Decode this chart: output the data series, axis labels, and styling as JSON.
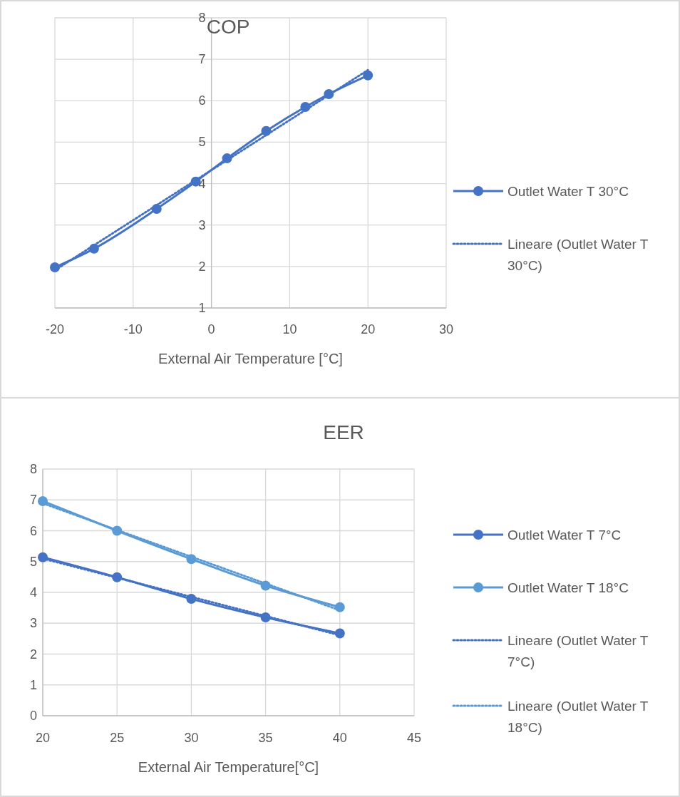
{
  "chart_data": [
    {
      "type": "line",
      "title": "COP",
      "xlabel": "External Air Temperature [°C]",
      "xlim": [
        -20,
        30
      ],
      "xticks": [
        -20,
        -10,
        0,
        10,
        20,
        30
      ],
      "ylim": [
        1,
        8
      ],
      "yticks": [
        1,
        2,
        3,
        4,
        5,
        6,
        7,
        8
      ],
      "grid": true,
      "legend": "right",
      "series": [
        {
          "name": "Outlet Water T 30°C",
          "color": "#4472c4",
          "marker": "circle",
          "line_style": "solid",
          "x": [
            -20,
            -15,
            -7,
            -2,
            2,
            7,
            12,
            15,
            20
          ],
          "values": [
            1.98,
            2.43,
            3.39,
            4.05,
            4.61,
            5.27,
            5.85,
            6.16,
            6.61
          ]
        },
        {
          "name": "Lineare (Outlet Water T 30°C)",
          "color": "#4472c4",
          "marker": "none",
          "line_style": "dotted",
          "x": [
            -20,
            20
          ],
          "values": [
            1.91,
            6.74
          ]
        }
      ]
    },
    {
      "type": "line",
      "title": "EER",
      "xlabel": "External Air Temperature[°C]",
      "xlim": [
        20,
        45
      ],
      "xticks": [
        20,
        25,
        30,
        35,
        40,
        45
      ],
      "ylim": [
        0,
        8
      ],
      "yticks": [
        0,
        1,
        2,
        3,
        4,
        5,
        6,
        7,
        8
      ],
      "grid": true,
      "legend": "right",
      "series": [
        {
          "name": "Outlet Water T 7°C",
          "color": "#4472c4",
          "marker": "circle",
          "line_style": "solid",
          "x": [
            20,
            25,
            30,
            35,
            40
          ],
          "values": [
            5.14,
            4.49,
            3.79,
            3.19,
            2.67
          ]
        },
        {
          "name": "Outlet Water T 18°C",
          "color": "#5b9bd5",
          "marker": "circle",
          "line_style": "solid",
          "x": [
            20,
            25,
            30,
            35,
            40
          ],
          "values": [
            6.96,
            6.0,
            5.08,
            4.22,
            3.52
          ]
        },
        {
          "name": "Lineare (Outlet Water T 7°C)",
          "color": "#4472c4",
          "marker": "none",
          "line_style": "dotted",
          "x": [
            20,
            40
          ],
          "values": [
            5.1,
            2.61
          ]
        },
        {
          "name": "Lineare (Outlet Water T 18°C)",
          "color": "#5b9bd5",
          "marker": "none",
          "line_style": "dotted",
          "x": [
            20,
            40
          ],
          "values": [
            6.89,
            3.42
          ]
        }
      ]
    }
  ]
}
